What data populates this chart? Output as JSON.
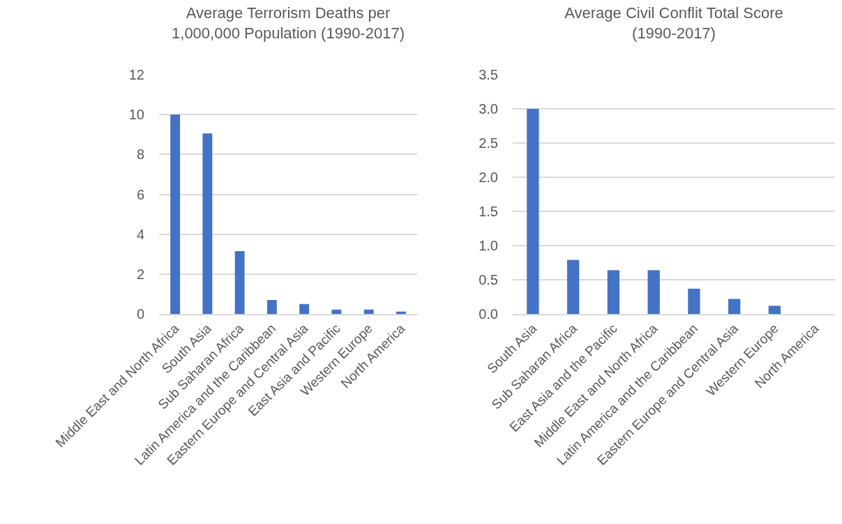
{
  "chart_data": [
    {
      "type": "bar",
      "title": "Average Terrorism Deaths per 1,000,000 Population (1990-2017)",
      "categories": [
        "Middle East and North Africa",
        "South Asia",
        "Sub Saharan Africa",
        "Latin America and the Caribbean",
        "Eastern Europe and Central Asia",
        "East Asia and Pacific",
        "Western Europe",
        "North America"
      ],
      "values": [
        10.0,
        9.05,
        3.15,
        0.7,
        0.5,
        0.22,
        0.22,
        0.12
      ],
      "color": "#4472c4",
      "ylim": [
        0,
        12
      ],
      "yticks": [
        0,
        2,
        4,
        6,
        8,
        10,
        12
      ],
      "grid": "y"
    },
    {
      "type": "bar",
      "title": "Average Civil Conflit Total Score (1990-2017)",
      "categories": [
        "South Asia",
        "Sub Saharan Africa",
        "East Asia and the Pacific",
        "Middle East and North Africa",
        "Latin America and the Caribbean",
        "Eastern Europe and Central Asia",
        "Western Europe",
        "North America"
      ],
      "values": [
        3.0,
        0.79,
        0.64,
        0.64,
        0.37,
        0.22,
        0.12,
        0
      ],
      "color": "#4472c4",
      "ylim": [
        0,
        3.5
      ],
      "yticks": [
        {
          "value": 0,
          "label": "0.0"
        },
        {
          "value": 0.5,
          "label": "0.5"
        },
        {
          "value": 1,
          "label": "1.0"
        },
        {
          "value": 1.5,
          "label": "1.5"
        },
        {
          "value": 2,
          "label": "2.0"
        },
        {
          "value": 2.5,
          "label": "2.5"
        },
        {
          "value": 3,
          "label": "3.0"
        },
        {
          "value": 3.5,
          "label": "3.5"
        }
      ],
      "grid": "y"
    }
  ]
}
